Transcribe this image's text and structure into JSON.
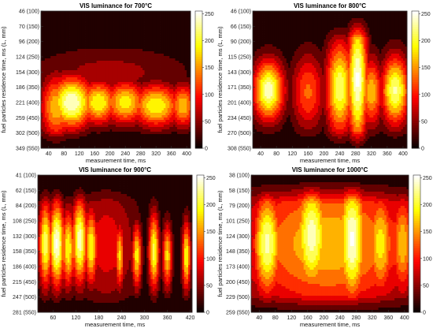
{
  "chart_data": [
    {
      "type": "heatmap",
      "title": "VIS luminance for 700°C",
      "xlabel": "measurement time, ms",
      "ylabel": "fuel particles residence time, ms (L, mm)",
      "xticks": [
        40,
        80,
        120,
        160,
        200,
        240,
        280,
        320,
        360,
        400
      ],
      "xlim": [
        20,
        410
      ],
      "yticks": [
        "46 (100)",
        "70 (150)",
        "96 (200)",
        "124 (250)",
        "154 (300)",
        "186 (350)",
        "221 (400)",
        "259 (450)",
        "302 (500)",
        "349 (550)"
      ],
      "colorbar": {
        "min": 0,
        "max": 255,
        "ticks": [
          0,
          50,
          100,
          150,
          200,
          250
        ]
      },
      "blobs": [
        {
          "x": 100,
          "y": 6.0,
          "intensity": 250,
          "sx": 40,
          "sy": 1.2
        },
        {
          "x": 60,
          "y": 6.3,
          "intensity": 170,
          "sx": 30,
          "sy": 1.5
        },
        {
          "x": 170,
          "y": 6.0,
          "intensity": 200,
          "sx": 35,
          "sy": 1.0
        },
        {
          "x": 240,
          "y": 6.0,
          "intensity": 190,
          "sx": 40,
          "sy": 1.0
        },
        {
          "x": 320,
          "y": 6.2,
          "intensity": 200,
          "sx": 45,
          "sy": 1.0
        },
        {
          "x": 390,
          "y": 6.2,
          "intensity": 170,
          "sx": 25,
          "sy": 1.0
        },
        {
          "x": 200,
          "y": 4.0,
          "intensity": 60,
          "sx": 150,
          "sy": 1.2
        }
      ]
    },
    {
      "type": "heatmap",
      "title": "VIS luminance for 800°C",
      "xlabel": "measurement time, ms",
      "ylabel": "fuel particles residence time, ms (L, mm)",
      "xticks": [
        40,
        80,
        120,
        160,
        200,
        240,
        280,
        320,
        360,
        400
      ],
      "xlim": [
        20,
        410
      ],
      "yticks": [
        "46 (100)",
        "66 (150)",
        "90 (200)",
        "115 (250)",
        "143 (300)",
        "171 (350)",
        "201 (400)",
        "234 (450)",
        "270 (500)",
        "308 (550)"
      ],
      "colorbar": {
        "min": 0,
        "max": 255,
        "ticks": [
          0,
          50,
          100,
          150,
          200,
          250
        ]
      },
      "blobs": [
        {
          "x": 60,
          "y": 5.2,
          "intensity": 240,
          "sx": 28,
          "sy": 1.4
        },
        {
          "x": 240,
          "y": 5.0,
          "intensity": 220,
          "sx": 25,
          "sy": 2.2
        },
        {
          "x": 285,
          "y": 4.5,
          "intensity": 255,
          "sx": 18,
          "sy": 3.0
        },
        {
          "x": 320,
          "y": 5.3,
          "intensity": 170,
          "sx": 20,
          "sy": 1.6
        },
        {
          "x": 380,
          "y": 5.2,
          "intensity": 230,
          "sx": 25,
          "sy": 1.6
        },
        {
          "x": 160,
          "y": 5.3,
          "intensity": 130,
          "sx": 30,
          "sy": 1.8
        }
      ]
    },
    {
      "type": "heatmap",
      "title": "VIS luminance for 900°C",
      "xlabel": "measurement time, ms",
      "ylabel": "fuel particles residence time, ms (L, mm)",
      "xticks": [
        60,
        120,
        180,
        240,
        300,
        360,
        420
      ],
      "xlim": [
        20,
        425
      ],
      "yticks": [
        "41 (100)",
        "62 (150)",
        "84 (200)",
        "108 (250)",
        "132 (300)",
        "158 (350)",
        "186 (400)",
        "215 (450)",
        "247 (500)",
        "281 (550)"
      ],
      "colorbar": {
        "min": 0,
        "max": 255,
        "ticks": [
          0,
          50,
          100,
          150,
          200,
          250
        ]
      },
      "blobs": [
        {
          "x": 40,
          "y": 4.5,
          "intensity": 220,
          "sx": 12,
          "sy": 2.0
        },
        {
          "x": 70,
          "y": 4.5,
          "intensity": 255,
          "sx": 14,
          "sy": 2.0
        },
        {
          "x": 100,
          "y": 4.8,
          "intensity": 200,
          "sx": 12,
          "sy": 1.8
        },
        {
          "x": 130,
          "y": 4.3,
          "intensity": 240,
          "sx": 14,
          "sy": 2.0
        },
        {
          "x": 160,
          "y": 4.7,
          "intensity": 200,
          "sx": 12,
          "sy": 1.8
        },
        {
          "x": 235,
          "y": 5.3,
          "intensity": 180,
          "sx": 8,
          "sy": 1.5
        },
        {
          "x": 280,
          "y": 5.3,
          "intensity": 190,
          "sx": 9,
          "sy": 1.5
        },
        {
          "x": 325,
          "y": 5.0,
          "intensity": 210,
          "sx": 10,
          "sy": 1.8
        },
        {
          "x": 360,
          "y": 5.3,
          "intensity": 180,
          "sx": 9,
          "sy": 1.5
        },
        {
          "x": 410,
          "y": 5.3,
          "intensity": 200,
          "sx": 8,
          "sy": 1.6
        },
        {
          "x": 200,
          "y": 4.5,
          "intensity": 90,
          "sx": 60,
          "sy": 3.0
        }
      ]
    },
    {
      "type": "heatmap",
      "title": "VIS luminance for 1000°C",
      "xlabel": "measurement time, ms",
      "ylabel": "fuel particles residence time, ms (L, mm)",
      "xticks": [
        40,
        80,
        120,
        160,
        200,
        240,
        280,
        320,
        360,
        400
      ],
      "xlim": [
        20,
        410
      ],
      "yticks": [
        "38 (100)",
        "58 (150)",
        "79 (200)",
        "101 (250)",
        "124 (300)",
        "148 (350)",
        "173 (400)",
        "200 (450)",
        "229 (500)",
        "259 (550)"
      ],
      "colorbar": {
        "min": 0,
        "max": 255,
        "ticks": [
          0,
          50,
          100,
          150,
          200,
          250
        ]
      },
      "blobs": [
        {
          "x": 60,
          "y": 4.5,
          "intensity": 235,
          "sx": 25,
          "sy": 2.5
        },
        {
          "x": 170,
          "y": 4.0,
          "intensity": 240,
          "sx": 30,
          "sy": 2.8
        },
        {
          "x": 270,
          "y": 4.2,
          "intensity": 255,
          "sx": 25,
          "sy": 3.0
        },
        {
          "x": 340,
          "y": 4.5,
          "intensity": 190,
          "sx": 25,
          "sy": 2.5
        },
        {
          "x": 395,
          "y": 4.5,
          "intensity": 170,
          "sx": 20,
          "sy": 2.5
        },
        {
          "x": 210,
          "y": 4.5,
          "intensity": 170,
          "sx": 170,
          "sy": 3.5
        }
      ]
    }
  ]
}
